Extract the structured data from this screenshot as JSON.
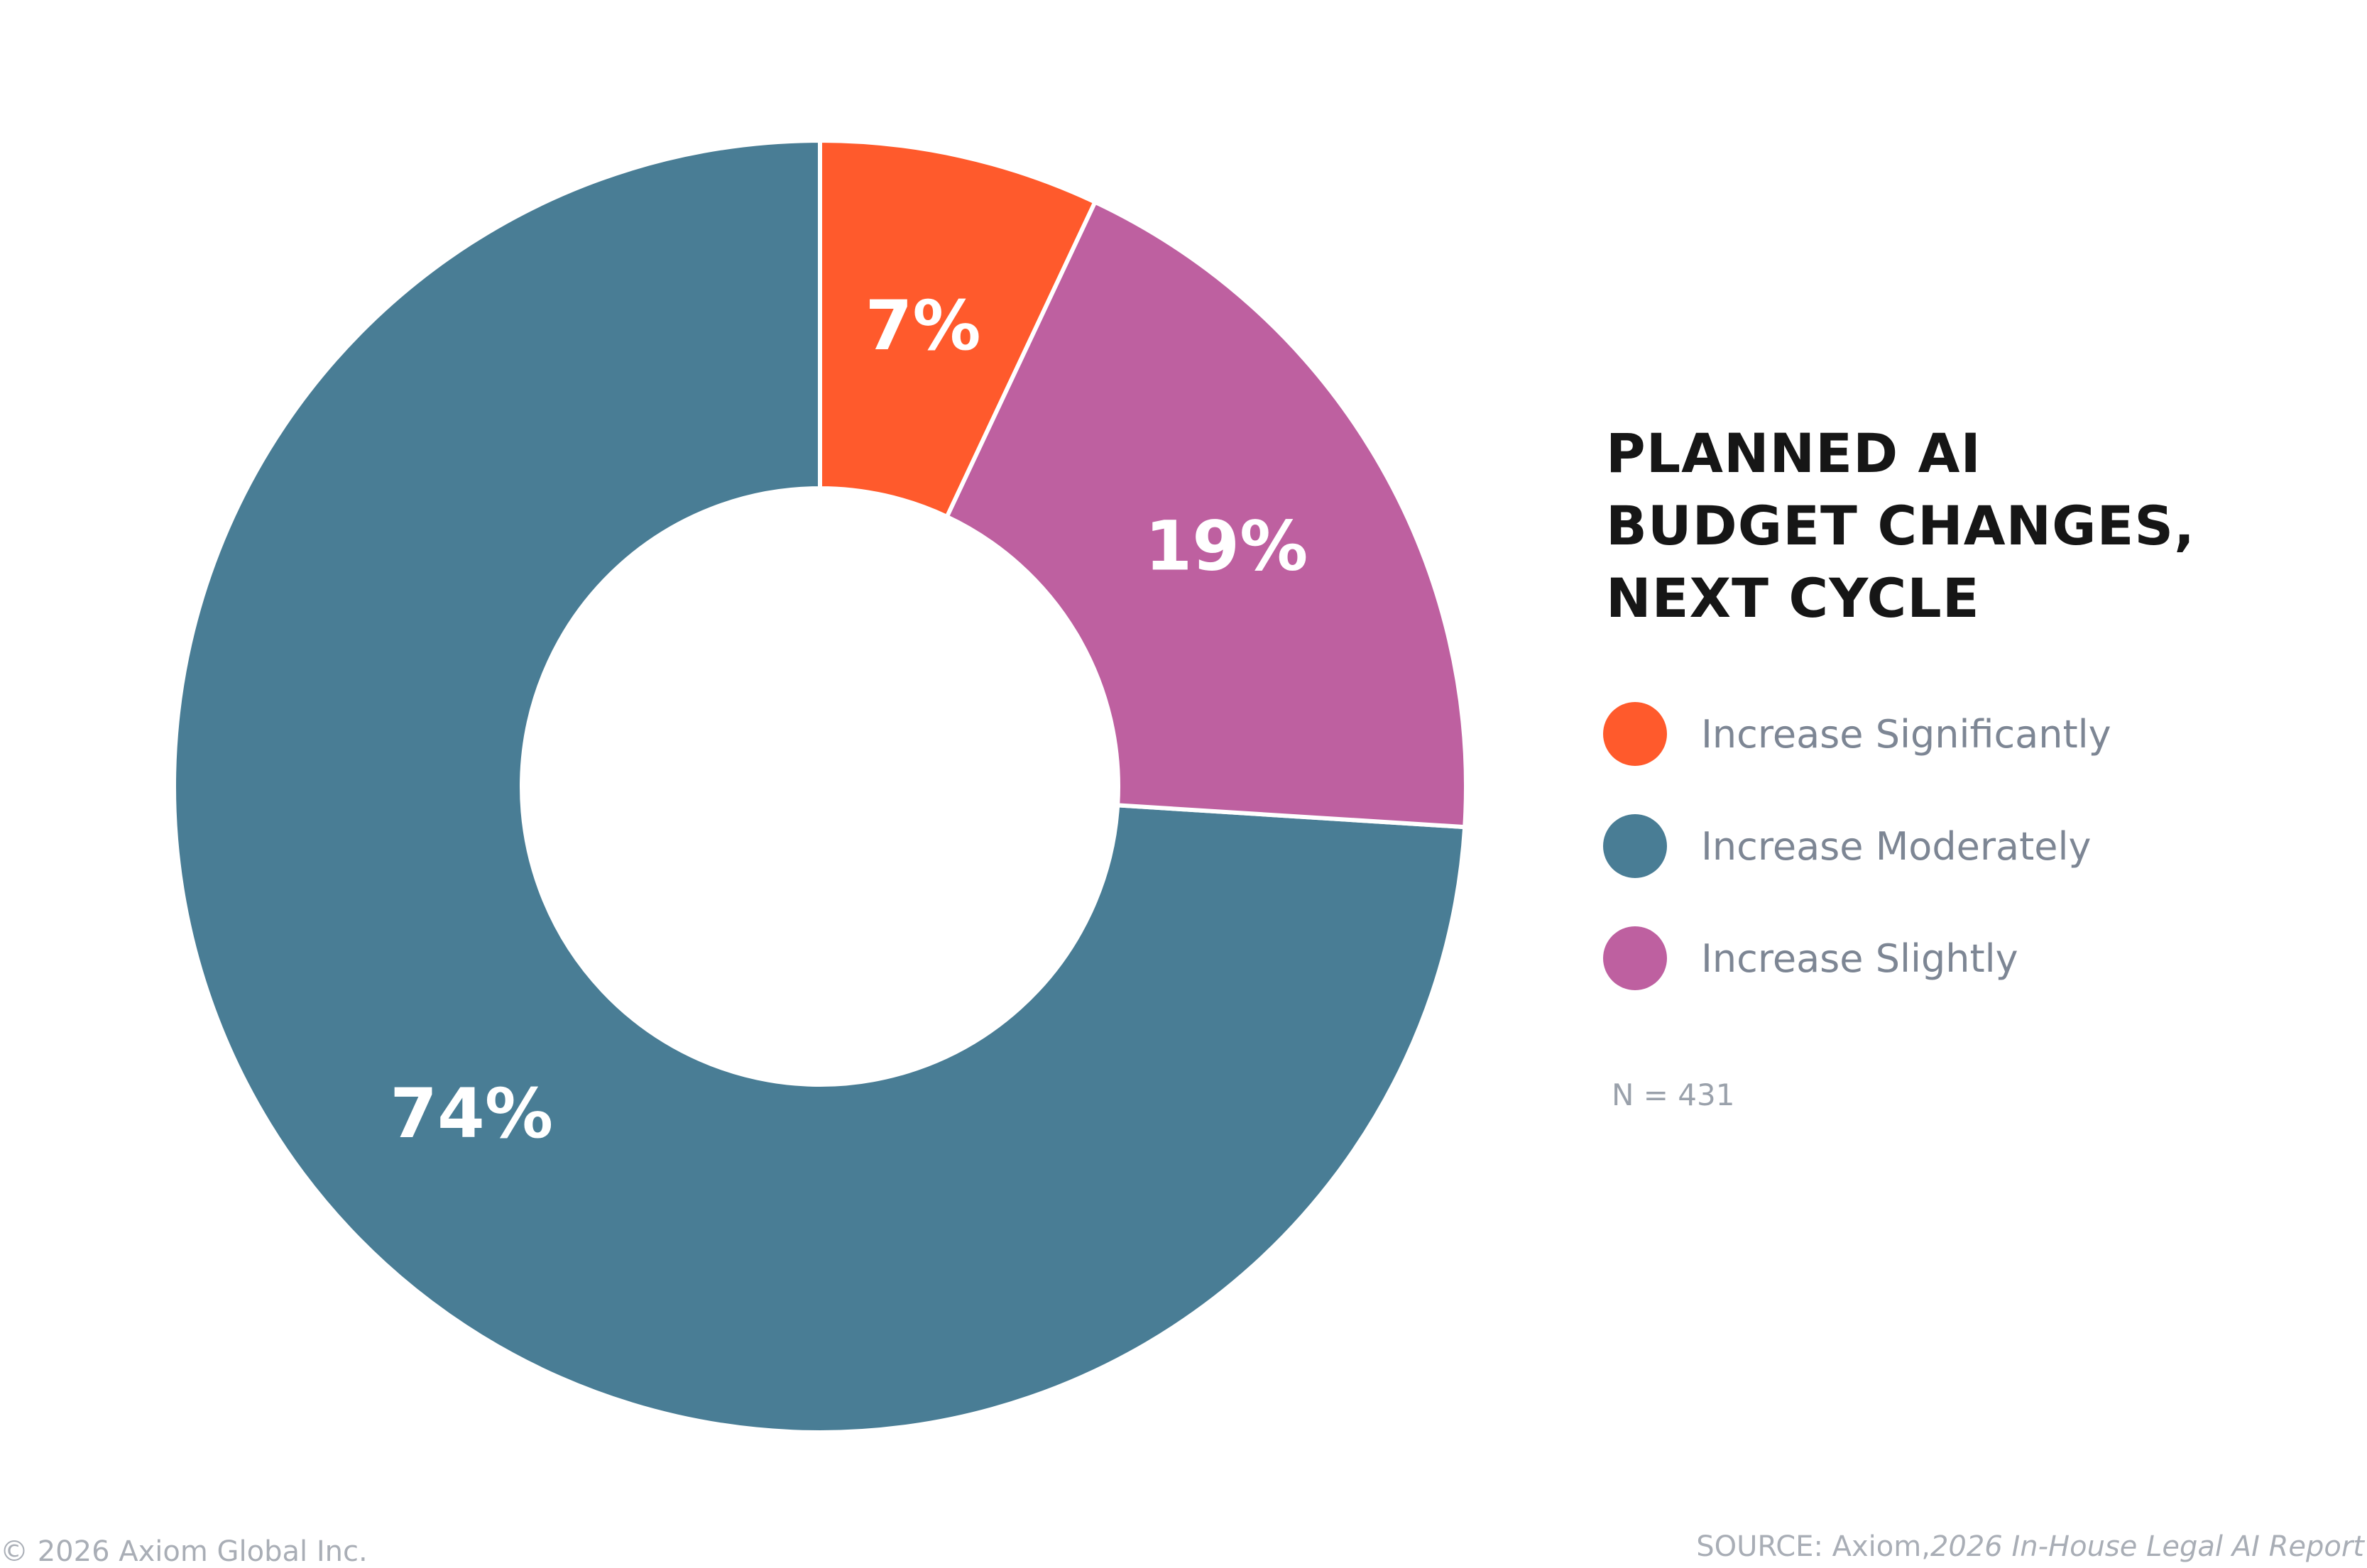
{
  "chart_data": {
    "type": "pie",
    "variant": "donut",
    "title_lines": [
      "PLANNED AI",
      "BUDGET CHANGES,",
      "NEXT CYCLE"
    ],
    "slices": [
      {
        "name": "Increase Moderately",
        "value": 74,
        "label": "74%",
        "color": "#497d95"
      },
      {
        "name": "Increase Significantly",
        "value": 7,
        "label": "7%",
        "color": "#ff5a2c"
      },
      {
        "name": "Increase Slightly",
        "value": 19,
        "label": "19%",
        "color": "#be60a0"
      }
    ],
    "legend": [
      {
        "label": "Increase Significantly",
        "color": "#ff5a2c"
      },
      {
        "label": "Increase Moderately",
        "color": "#497d95"
      },
      {
        "label": "Increase Slightly",
        "color": "#be60a0"
      }
    ],
    "legend_position": "right",
    "sample_note": "N = 431"
  },
  "footer": {
    "copyright": "© 2026 Axiom Global Inc.",
    "source_prefix": "SOURCE: Axiom,",
    "source_report": "2026 In-House Legal AI Report"
  }
}
